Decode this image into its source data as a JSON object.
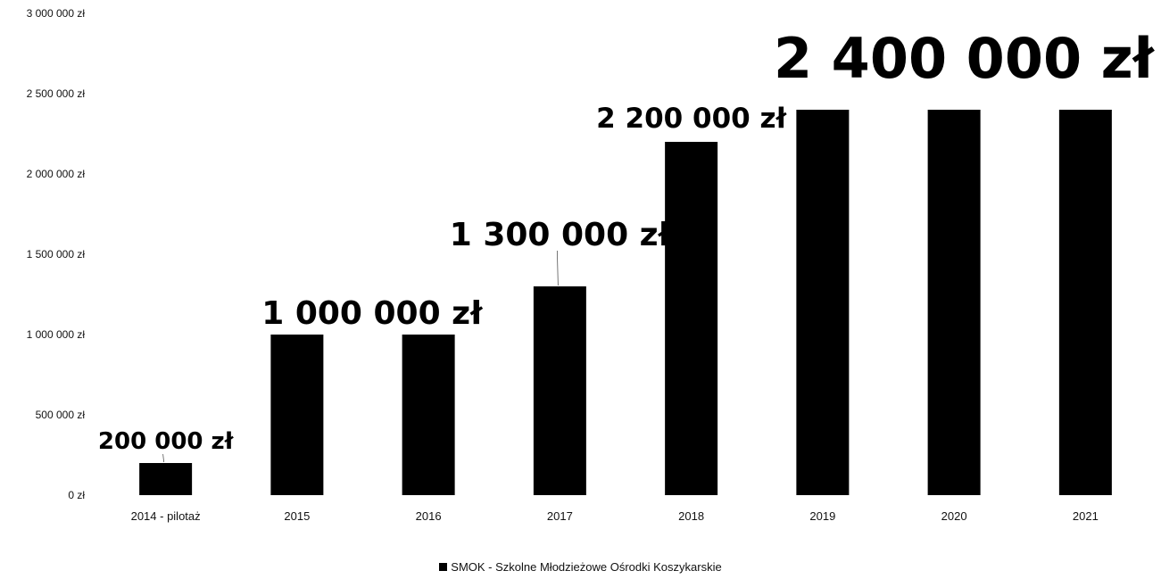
{
  "chart_data": {
    "type": "bar",
    "categories": [
      "2014 - pilotaż",
      "2015",
      "2016",
      "2017",
      "2018",
      "2019",
      "2020",
      "2021"
    ],
    "series": [
      {
        "name": "SMOK - Szkolne Młodzieżowe Ośrodki Koszykarskie",
        "values": [
          200000,
          1000000,
          1000000,
          1300000,
          2200000,
          2400000,
          2400000,
          2400000
        ],
        "color": "#000000"
      }
    ],
    "y_ticks": [
      "0 zł",
      "500 000 zł",
      "1 000 000 zł",
      "1 500 000 zł",
      "2 000 000 zł",
      "2 500 000 zł",
      "3 000 000 zł"
    ],
    "ylim": [
      0,
      3000000
    ],
    "data_labels": [
      {
        "category_index": 0,
        "text": "200 000 zł"
      },
      {
        "category_index": 1,
        "text": "1 000 000 zł"
      },
      {
        "category_index": 3,
        "text": "1 300 000 zł"
      },
      {
        "category_index": 4,
        "text": "2 200 000 zł"
      },
      {
        "category_index": 5,
        "text": "2 400 000 zł"
      }
    ],
    "legend": {
      "position": "bottom",
      "label": "SMOK - Szkolne Młodzieżowe Ośrodki Koszykarskie"
    },
    "grid": false
  }
}
